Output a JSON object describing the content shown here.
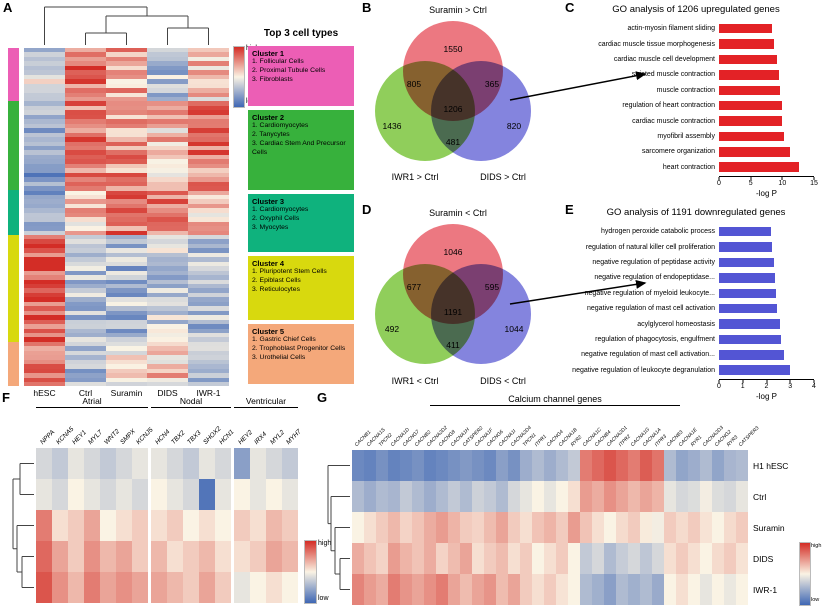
{
  "chart_data": [
    {
      "id": "A",
      "panel": "A",
      "type": "heatmap",
      "columns": [
        "hESC",
        "Ctrl",
        "Suramin",
        "DIDS",
        "IWR-1"
      ],
      "colorscale": {
        "high_label": "high",
        "low_label": "low",
        "high_color": "#d32d26",
        "mid_color": "#faf3e4",
        "low_color": "#3f67b4"
      },
      "legend_title": "Top 3 cell types",
      "seed": 7,
      "noise": 0.2,
      "clusters": [
        {
          "name": "Cluster 1",
          "color": "#ec5eb5",
          "rows": 12,
          "profile": [
            0.42,
            0.85,
            0.68,
            0.32,
            0.6
          ],
          "top_cell_types": [
            "1. Follicular  Cells",
            "2. Proximal Tubule Cells",
            "3. Fibroblasts"
          ]
        },
        {
          "name": "Cluster 2",
          "color": "#37b13c",
          "rows": 20,
          "profile": [
            0.2,
            0.78,
            0.74,
            0.62,
            0.78
          ],
          "top_cell_types": [
            "1. Cardiomyocytes",
            "2. Tanycytes",
            "3. Cardiac Stem And Precursor Cells"
          ]
        },
        {
          "name": "Cluster 3",
          "color": "#0fb27d",
          "rows": 10,
          "profile": [
            0.26,
            0.6,
            0.8,
            0.76,
            0.58
          ],
          "top_cell_types": [
            "1. Cardiomyocytes",
            "2. Oxyphil Cells",
            "3. Myocytes"
          ]
        },
        {
          "name": "Cluster 4",
          "color": "#d8d90e",
          "rows": 24,
          "profile": [
            0.88,
            0.34,
            0.3,
            0.36,
            0.3
          ],
          "top_cell_types": [
            "1. Pluripotent Stem Cells",
            "2. Epiblast Cells",
            "3. Reticulocytes"
          ]
        },
        {
          "name": "Cluster 5",
          "color": "#f4a87a",
          "rows": 10,
          "profile": [
            0.74,
            0.32,
            0.5,
            0.6,
            0.36
          ],
          "top_cell_types": [
            "1. Gastric Chief Cells",
            "2. Trophoblast Progenitor Cells",
            "3. Urothelial Cells"
          ]
        }
      ]
    },
    {
      "id": "B",
      "panel": "B",
      "type": "venn",
      "title": "Suramin > Ctrl",
      "set_labels": {
        "left": "IWR1 > Ctrl",
        "right": "DIDS > Ctrl"
      },
      "colors": {
        "top": "#e9606b",
        "left": "#7dc63e",
        "right": "#6e6fd8"
      },
      "regions": {
        "top_only": "1550",
        "top_left": "805",
        "top_right": "365",
        "center": "1206",
        "left_only": "1436",
        "left_right": "481",
        "right_only": "820"
      }
    },
    {
      "id": "C",
      "panel": "C",
      "type": "bar",
      "title": "GO analysis of 1206 upregulated genes",
      "bar_color": "#e32226",
      "categories": [
        "actin-myosin filament sliding",
        "cardiac muscle tissue morphogenesis",
        "cardiac muscle cell development",
        "striated muscle contraction",
        "muscle contraction",
        "regulation of heart contraction",
        "cardiac muscle contraction",
        "myofibril assembly",
        "sarcomere organization",
        "heart contraction"
      ],
      "values": [
        8.4,
        8.7,
        9.2,
        9.5,
        9.7,
        9.9,
        10.0,
        10.2,
        11.2,
        12.6
      ],
      "xlabel": "-log P",
      "xlim": [
        0,
        15
      ],
      "xticks": [
        0,
        5,
        10,
        15
      ]
    },
    {
      "id": "D",
      "panel": "D",
      "type": "venn",
      "title": "Suramin < Ctrl",
      "set_labels": {
        "left": "IWR1 < Ctrl",
        "right": "DIDS < Ctrl"
      },
      "colors": {
        "top": "#e9606b",
        "left": "#7dc63e",
        "right": "#6e6fd8"
      },
      "regions": {
        "top_only": "1046",
        "top_left": "677",
        "top_right": "595",
        "center": "1191",
        "left_only": "492",
        "left_right": "411",
        "right_only": "1044"
      }
    },
    {
      "id": "E",
      "panel": "E",
      "type": "bar",
      "title": "GO analysis of 1191 downregulated genes",
      "bar_color": "#5355d4",
      "categories": [
        "hydrogen peroxide catabolic process",
        "regulation of natural killer cell proliferation",
        "negative regulation of peptidase activity",
        "negative regulation of endopeptidase...",
        "negative regulation of myeloid leukocyte...",
        "negative regulation of mast cell activation",
        "acylglycerol homeostasis",
        "regulation of phagocytosis, engulfment",
        "negative regulation of mast cell activation...",
        "negative regulation of leukocyte degranulation"
      ],
      "values": [
        2.2,
        2.25,
        2.3,
        2.35,
        2.4,
        2.45,
        2.55,
        2.6,
        2.75,
        3.0
      ],
      "xlabel": "-log P",
      "xlim": [
        0,
        4
      ],
      "xticks": [
        0,
        1,
        2,
        3,
        4
      ]
    },
    {
      "id": "F",
      "panel": "F",
      "type": "heatmap",
      "groups": [
        {
          "label": "Atrial",
          "genes": [
            "NPPA",
            "KCNA5",
            "HEY1",
            "MYL7",
            "WNT2",
            "SMPX",
            "KCNJ5"
          ]
        },
        {
          "label": "Nodal",
          "genes": [
            "HCN4",
            "TBX2",
            "TBX3",
            "SHOX2",
            "HCN1"
          ]
        },
        {
          "label": "Ventricular",
          "genes": [
            "HEY2",
            "IRX4",
            "MYL2",
            "MYH7"
          ]
        }
      ],
      "rows": [
        "H1 hESC",
        "Ctrl",
        "Suramin",
        "IWR-1",
        "DIDS"
      ],
      "values": [
        [
          0.4,
          0.35,
          0.45,
          0.4,
          0.35,
          0.4,
          0.45,
          0.45,
          0.4,
          0.35,
          0.45,
          0.4,
          0.2,
          0.45,
          0.4,
          0.35
        ],
        [
          0.45,
          0.4,
          0.5,
          0.45,
          0.4,
          0.45,
          0.4,
          0.5,
          0.45,
          0.4,
          0.05,
          0.45,
          0.5,
          0.45,
          0.5,
          0.45
        ],
        [
          0.8,
          0.55,
          0.6,
          0.7,
          0.5,
          0.55,
          0.6,
          0.55,
          0.6,
          0.5,
          0.55,
          0.5,
          0.6,
          0.55,
          0.65,
          0.6
        ],
        [
          0.85,
          0.7,
          0.6,
          0.75,
          0.65,
          0.7,
          0.6,
          0.65,
          0.55,
          0.6,
          0.65,
          0.55,
          0.55,
          0.6,
          0.7,
          0.65
        ],
        [
          0.9,
          0.75,
          0.65,
          0.8,
          0.7,
          0.75,
          0.7,
          0.7,
          0.65,
          0.6,
          0.7,
          0.6,
          0.45,
          0.5,
          0.55,
          0.5
        ]
      ],
      "colorscale": {
        "high_label": "high",
        "low_label": "low"
      }
    },
    {
      "id": "G",
      "panel": "G",
      "type": "heatmap",
      "title": "Calcium channel genes",
      "genes": [
        "CACNB1",
        "CACNA1S",
        "TPCN2",
        "CACNA1D",
        "CACNG7",
        "CACNB2",
        "CACNA2D2",
        "CACNG8",
        "CACNA1H",
        "CATSPER2",
        "CACNA1F",
        "CACNG6",
        "CACNA1I",
        "CACNA2D4",
        "TPCN1",
        "ITPR1",
        "CACNG4",
        "CACNA1B",
        "RYR2",
        "CACNA1C",
        "CACNB4",
        "CACNA2D1",
        "ITPR2",
        "CACNA1G",
        "CACNA1A",
        "ITPR3",
        "CACNB3",
        "CACNA1E",
        "RYR1",
        "CACNA2D3",
        "CACNG2",
        "RYR3",
        "CATSPER3"
      ],
      "rows": [
        "H1 hESC",
        "Ctrl",
        "Suramin",
        "DIDS",
        "IWR-1"
      ],
      "values": [
        [
          0.12,
          0.1,
          0.15,
          0.1,
          0.12,
          0.15,
          0.1,
          0.12,
          0.15,
          0.18,
          0.15,
          0.12,
          0.2,
          0.15,
          0.25,
          0.3,
          0.25,
          0.3,
          0.35,
          0.8,
          0.85,
          0.9,
          0.85,
          0.8,
          0.88,
          0.82,
          0.3,
          0.22,
          0.25,
          0.3,
          0.22,
          0.28,
          0.3
        ],
        [
          0.3,
          0.25,
          0.3,
          0.28,
          0.35,
          0.3,
          0.25,
          0.3,
          0.35,
          0.3,
          0.38,
          0.35,
          0.3,
          0.4,
          0.45,
          0.5,
          0.45,
          0.5,
          0.55,
          0.72,
          0.68,
          0.75,
          0.7,
          0.65,
          0.7,
          0.66,
          0.45,
          0.4,
          0.42,
          0.48,
          0.42,
          0.4,
          0.45
        ],
        [
          0.5,
          0.55,
          0.6,
          0.65,
          0.58,
          0.62,
          0.68,
          0.72,
          0.66,
          0.6,
          0.58,
          0.64,
          0.7,
          0.6,
          0.55,
          0.62,
          0.66,
          0.6,
          0.72,
          0.62,
          0.55,
          0.5,
          0.56,
          0.6,
          0.52,
          0.48,
          0.6,
          0.56,
          0.6,
          0.54,
          0.5,
          0.56,
          0.6
        ],
        [
          0.68,
          0.62,
          0.58,
          0.72,
          0.66,
          0.62,
          0.68,
          0.58,
          0.64,
          0.7,
          0.55,
          0.6,
          0.64,
          0.55,
          0.6,
          0.5,
          0.55,
          0.6,
          0.5,
          0.35,
          0.4,
          0.3,
          0.36,
          0.4,
          0.34,
          0.4,
          0.55,
          0.6,
          0.55,
          0.5,
          0.56,
          0.6,
          0.54
        ],
        [
          0.78,
          0.72,
          0.68,
          0.8,
          0.74,
          0.7,
          0.75,
          0.8,
          0.7,
          0.64,
          0.7,
          0.74,
          0.64,
          0.7,
          0.6,
          0.55,
          0.6,
          0.54,
          0.5,
          0.3,
          0.26,
          0.2,
          0.3,
          0.26,
          0.3,
          0.24,
          0.5,
          0.55,
          0.5,
          0.45,
          0.5,
          0.46,
          0.5
        ]
      ],
      "colorscale": {
        "high_label": "high",
        "low_label": "low"
      }
    }
  ]
}
